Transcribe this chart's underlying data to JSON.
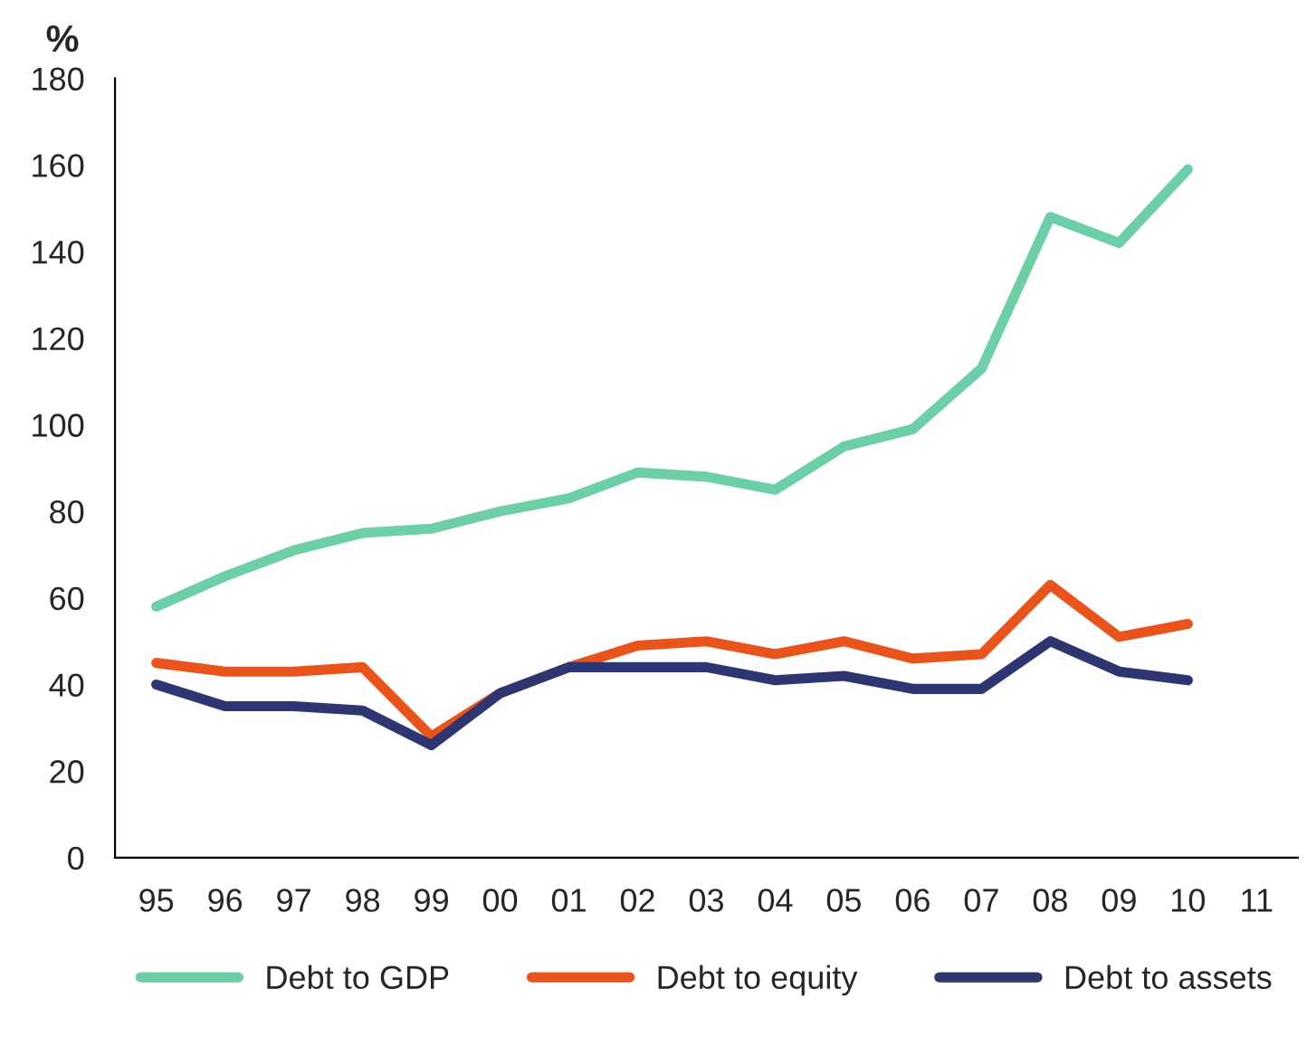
{
  "chart_data": {
    "type": "line",
    "ylabel": "%",
    "categories": [
      "95",
      "96",
      "97",
      "98",
      "99",
      "00",
      "01",
      "02",
      "03",
      "04",
      "05",
      "06",
      "07",
      "08",
      "09",
      "10",
      "11"
    ],
    "series": [
      {
        "name": "Debt to GDP",
        "color": "#6dcfa6",
        "values": [
          58,
          65,
          71,
          75,
          76,
          80,
          83,
          89,
          88,
          85,
          95,
          99,
          113,
          148,
          142,
          159,
          null
        ]
      },
      {
        "name": "Debt to equity",
        "color": "#e8541c",
        "values": [
          45,
          43,
          43,
          44,
          28,
          38,
          44,
          49,
          50,
          47,
          50,
          46,
          47,
          63,
          51,
          54,
          null
        ]
      },
      {
        "name": "Debt to assets",
        "color": "#2e3672",
        "values": [
          40,
          35,
          35,
          34,
          26,
          38,
          44,
          44,
          44,
          41,
          42,
          39,
          39,
          50,
          43,
          41,
          null
        ]
      }
    ],
    "ylim": [
      0,
      180
    ],
    "yticks": [
      0,
      20,
      40,
      60,
      80,
      100,
      120,
      140,
      160,
      180
    ],
    "grid": false,
    "legend": "bottom",
    "marker": "none",
    "line_style": "solid"
  }
}
